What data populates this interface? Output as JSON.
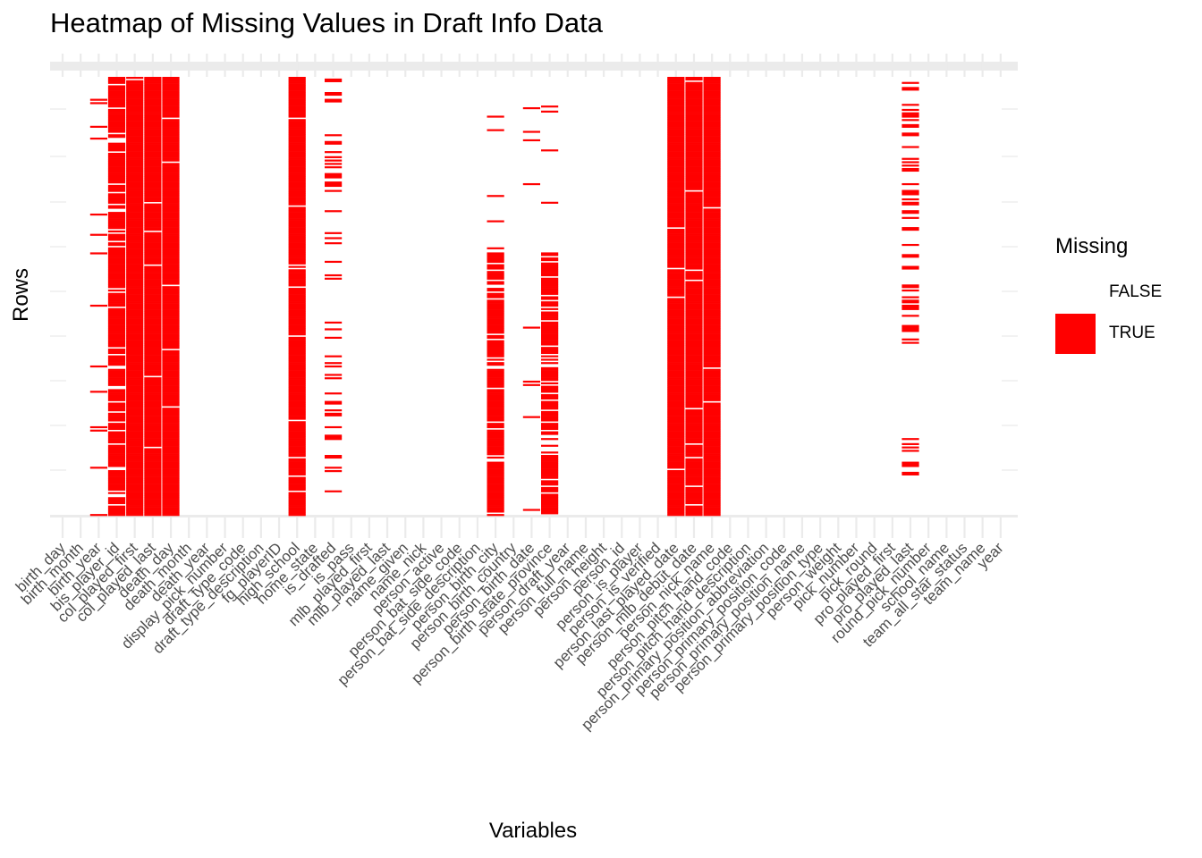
{
  "chart_data": {
    "type": "heatmap",
    "title": "Heatmap of Missing Values in Draft Info Data",
    "xlabel": "Variables",
    "ylabel": "Rows",
    "legend": {
      "title": "Missing",
      "placement": "right",
      "entries": [
        {
          "label": "FALSE",
          "color": "#ffffff"
        },
        {
          "label": "TRUE",
          "color": "#ff0000"
        }
      ]
    },
    "y_ticks_labeled": false,
    "grid": true,
    "colors": {
      "missing": "#ff0000",
      "present": "#ffffff",
      "grid": "#ebebeb"
    },
    "variables": [
      "birth_day",
      "birth_month",
      "birth_year",
      "bis_player_id",
      "col_played_first",
      "col_played_last",
      "death_day",
      "death_month",
      "death_year",
      "display_pick_number",
      "draft_type_code",
      "draft_type_description",
      "fg_playerID",
      "high_school",
      "home_state",
      "is_drafted",
      "is_pass",
      "mlb_played_first",
      "mlb_played_last",
      "name_given",
      "name_nick",
      "person_active",
      "person_bat_side_code",
      "person_bat_side_description",
      "person_birth_city",
      "person_birth_country",
      "person_birth_date",
      "person_birth_state_province",
      "person_draft_year",
      "person_full_name",
      "person_height",
      "person_id",
      "person_is_player",
      "person_is_verified",
      "person_last_played_date",
      "person_mlb_debut_date",
      "person_nick_name",
      "person_pitch_hand_code",
      "person_pitch_hand_description",
      "person_primary_position_abbreviation",
      "person_primary_position_code",
      "person_primary_position_name",
      "person_primary_position_type",
      "person_weight",
      "pick_number",
      "pick_round",
      "pro_played_first",
      "pro_played_last",
      "round_pick_number",
      "school_name",
      "team_all_star_status",
      "team_name",
      "year"
    ],
    "column_missingness": [
      {
        "variable": "birth_year",
        "pattern": "sparse",
        "fraction": 0.06
      },
      {
        "variable": "bis_player_id",
        "pattern": "dense",
        "fraction": 0.88
      },
      {
        "variable": "col_played_first",
        "pattern": "dense",
        "fraction": 0.99
      },
      {
        "variable": "col_played_last",
        "pattern": "dense",
        "fraction": 0.99
      },
      {
        "variable": "death_day",
        "pattern": "dense",
        "fraction": 0.99
      },
      {
        "variable": "high_school",
        "pattern": "dense",
        "fraction": 0.97
      },
      {
        "variable": "is_drafted",
        "pattern": "sparse",
        "fraction": 0.2
      },
      {
        "variable": "person_birth_city",
        "pattern": "banded",
        "fraction": 0.55
      },
      {
        "variable": "person_birth_date",
        "pattern": "sparse",
        "fraction": 0.05
      },
      {
        "variable": "person_birth_state_province",
        "pattern": "banded",
        "fraction": 0.55
      },
      {
        "variable": "person_last_played_date",
        "pattern": "dense",
        "fraction": 0.99
      },
      {
        "variable": "person_mlb_debut_date",
        "pattern": "dense",
        "fraction": 0.97
      },
      {
        "variable": "person_nick_name",
        "pattern": "dense",
        "fraction": 0.98
      },
      {
        "variable": "pro_played_last",
        "pattern": "sparse",
        "fraction": 0.22
      }
    ]
  }
}
